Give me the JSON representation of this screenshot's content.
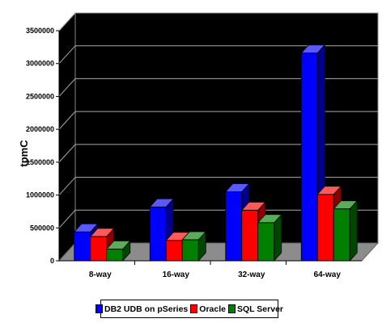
{
  "chart_data": {
    "type": "bar",
    "title": "",
    "xlabel": "",
    "ylabel": "tpmC",
    "ylim": [
      0,
      3500000
    ],
    "yticks": [
      "0",
      "500000",
      "1000000",
      "1500000",
      "2000000",
      "2500000",
      "3000000",
      "3500000"
    ],
    "categories": [
      "8-way",
      "16-way",
      "32-way",
      "64-way"
    ],
    "series": [
      {
        "name": "DB2 UDB on pSeries",
        "color": "#0000ff",
        "values": [
          440000,
          820000,
          1050000,
          3160000
        ]
      },
      {
        "name": "Oracle",
        "color": "#ff0000",
        "values": [
          370000,
          310000,
          770000,
          1010000
        ]
      },
      {
        "name": "SQL Server",
        "color": "#008000",
        "values": [
          180000,
          320000,
          580000,
          790000
        ]
      }
    ],
    "grid": true,
    "legend_position": "bottom",
    "style": "3d-clustered-column"
  }
}
